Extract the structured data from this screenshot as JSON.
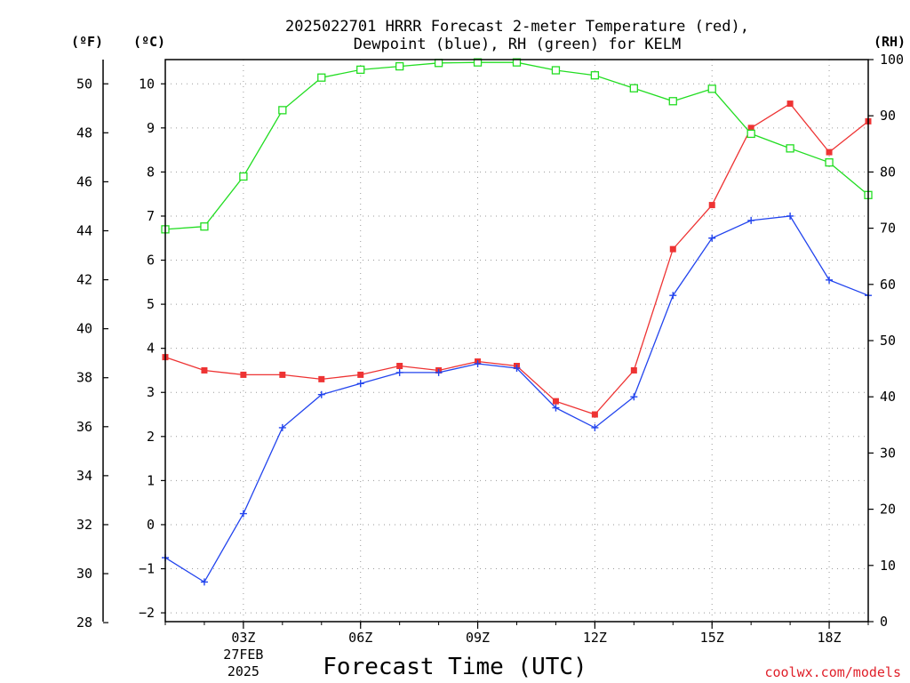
{
  "chart_data": {
    "type": "line",
    "title": [
      "2025022701 HRRR Forecast 2-meter Temperature (red),",
      "Dewpoint (blue), RH (green) for KELM"
    ],
    "xlabel": "Forecast Time (UTC)",
    "credit": "coolwx.com/models",
    "units": {
      "fahrenheit": "(ºF)",
      "celsius": "(ºC)",
      "rh": "(RH)"
    },
    "x": [
      1,
      2,
      3,
      4,
      5,
      6,
      7,
      8,
      9,
      10,
      11,
      12,
      13,
      14,
      15,
      16,
      17,
      18,
      19
    ],
    "x_ticks": [
      {
        "x": 3,
        "lines": [
          "03Z",
          "27FEB",
          "2025"
        ]
      },
      {
        "x": 6,
        "lines": [
          "06Z"
        ]
      },
      {
        "x": 9,
        "lines": [
          "09Z"
        ]
      },
      {
        "x": 12,
        "lines": [
          "12Z"
        ]
      },
      {
        "x": 15,
        "lines": [
          "15Z"
        ]
      },
      {
        "x": 18,
        "lines": [
          "18Z"
        ]
      }
    ],
    "xlim": [
      1,
      19
    ],
    "celsius_ticks": [
      -2,
      -1,
      0,
      1,
      2,
      3,
      4,
      5,
      6,
      7,
      8,
      9,
      10
    ],
    "celsius_ylim": [
      -2.2,
      10.55
    ],
    "fahrenheit_ticks": [
      28,
      30,
      32,
      34,
      36,
      38,
      40,
      42,
      44,
      46,
      48,
      50
    ],
    "rh_ticks": [
      0,
      10,
      20,
      30,
      40,
      50,
      60,
      70,
      80,
      90,
      100
    ],
    "rh_ylim": [
      0,
      100
    ],
    "grid": true,
    "series": [
      {
        "name": "Temperature",
        "axis": "celsius",
        "color": "#ee3333",
        "marker": "filled-square",
        "values": [
          3.8,
          3.5,
          3.4,
          3.4,
          3.3,
          3.4,
          3.6,
          3.5,
          3.7,
          3.6,
          2.8,
          2.5,
          3.5,
          6.25,
          7.25,
          9.0,
          9.55,
          8.45,
          9.15
        ]
      },
      {
        "name": "Dewpoint",
        "axis": "celsius",
        "color": "#2244ee",
        "marker": "plus",
        "values": [
          -0.75,
          -1.3,
          0.25,
          2.2,
          2.95,
          3.2,
          3.45,
          3.45,
          3.65,
          3.55,
          2.65,
          2.2,
          2.9,
          5.2,
          6.5,
          6.9,
          7.0,
          5.55,
          5.2
        ]
      },
      {
        "name": "RH",
        "axis": "rh",
        "color": "#22dd22",
        "marker": "open-square",
        "values": [
          69.8,
          70.3,
          79.2,
          91.0,
          96.8,
          98.2,
          98.8,
          99.4,
          99.5,
          99.5,
          98.1,
          97.2,
          94.9,
          92.6,
          94.8,
          86.8,
          84.2,
          81.7,
          75.9
        ]
      }
    ]
  }
}
